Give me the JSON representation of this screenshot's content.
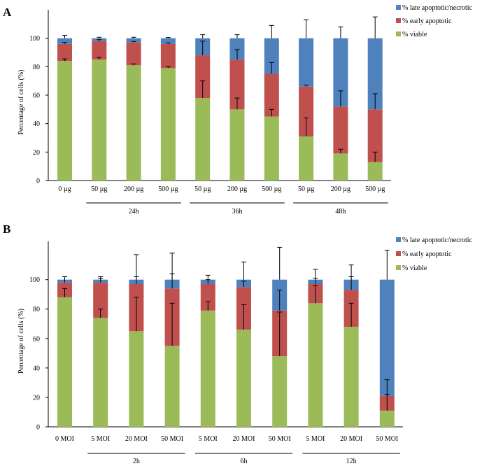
{
  "colors": {
    "viable": "#9bbb59",
    "early": "#c0504d",
    "late": "#4f81bd",
    "axis": "#000000"
  },
  "chart_data": [
    {
      "panel": "A",
      "type": "bar",
      "stacked": true,
      "ylabel": "Percentage of cells (%)",
      "ylim": [
        0,
        120
      ],
      "yticks": [
        "0",
        "20",
        "40",
        "60",
        "80",
        "100"
      ],
      "legend_position": "top-right",
      "categories": [
        "0 µg",
        "50 µg",
        "200 µg",
        "500 µg",
        "50 µg",
        "200 µg",
        "500 µg",
        "50 µg",
        "200 µg",
        "500 µg"
      ],
      "groups": [
        {
          "label": "24h",
          "start": 1,
          "end": 3
        },
        {
          "label": "36h",
          "start": 4,
          "end": 6
        },
        {
          "label": "48h",
          "start": 7,
          "end": 9
        }
      ],
      "series": [
        {
          "name": "% viable",
          "key": "viable",
          "values": [
            84,
            85,
            81,
            79,
            58,
            50,
            45,
            31,
            19,
            13
          ],
          "errors": [
            1.5,
            1.5,
            1,
            1,
            12,
            8,
            5,
            13,
            3,
            7
          ]
        },
        {
          "name": "% early apoptotic",
          "key": "early",
          "values": [
            12,
            13,
            16,
            17,
            30,
            35,
            30,
            35,
            33,
            37
          ],
          "errors": [
            1,
            1,
            0.7,
            0.7,
            10,
            7,
            8,
            1,
            11,
            11
          ]
        },
        {
          "name": "% late apoptotic/necrotic",
          "key": "late",
          "values": [
            4,
            2,
            3,
            4,
            12,
            15,
            25,
            34,
            48,
            50
          ],
          "errors": [
            2,
            0.7,
            0.7,
            0.5,
            2.5,
            2.5,
            9,
            13,
            8,
            15
          ]
        }
      ]
    },
    {
      "panel": "B",
      "type": "bar",
      "stacked": true,
      "ylabel": "Percentage of cells (%)",
      "ylim": [
        0,
        126
      ],
      "yticks": [
        "0",
        "20",
        "40",
        "60",
        "80",
        "100"
      ],
      "legend_position": "top-right",
      "categories": [
        "0 MOI",
        "5 MOI",
        "20 MOI",
        "50 MOI",
        "5 MOI",
        "20 MOI",
        "50 MOI",
        "5 MOI",
        "20 MOI",
        "50 MOI"
      ],
      "groups": [
        {
          "label": "2h",
          "start": 1,
          "end": 3
        },
        {
          "label": "6h",
          "start": 4,
          "end": 6
        },
        {
          "label": "12h",
          "start": 7,
          "end": 9
        }
      ],
      "series": [
        {
          "name": "% viable",
          "key": "viable",
          "values": [
            88,
            74,
            65,
            55,
            79,
            66,
            48,
            84,
            68,
            11
          ],
          "errors": [
            6,
            6,
            23,
            29,
            6,
            17,
            30,
            12,
            16,
            11
          ]
        },
        {
          "name": "% early apoptotic",
          "key": "early",
          "values": [
            10,
            24,
            32,
            39,
            18,
            29,
            31,
            13,
            25,
            10
          ],
          "errors": [
            4,
            3,
            5,
            10,
            3,
            4,
            14,
            4,
            9,
            11
          ]
        },
        {
          "name": "% late apoptotic/necrotic",
          "key": "late",
          "values": [
            2,
            2,
            3,
            6,
            3,
            5,
            21,
            3,
            7,
            79
          ],
          "errors": [
            2,
            2,
            17,
            18,
            3,
            12,
            22,
            7,
            10,
            20
          ]
        }
      ]
    }
  ]
}
